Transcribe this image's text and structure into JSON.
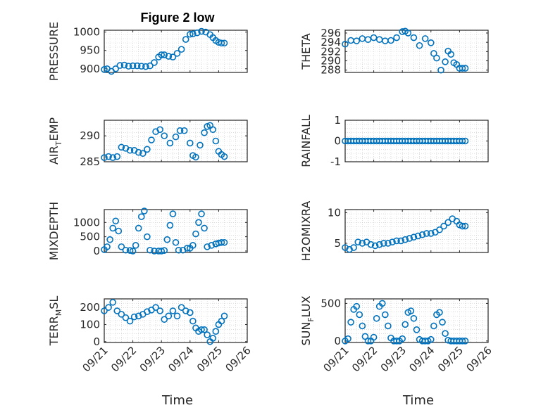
{
  "figure": {
    "title": "Figure 2 low",
    "xlabel": "Time"
  },
  "colors": {
    "marker": "#0072BD",
    "axis": "#262626",
    "grid": "#c8c8c8"
  },
  "x_ticks": [
    "09/21",
    "09/22",
    "09/23",
    "09/24",
    "09/25",
    "09/26"
  ],
  "chart_data": [
    {
      "type": "scatter",
      "ylabel_main": "PRESSURE",
      "ylabel_sub": "",
      "ylim": [
        890,
        1005
      ],
      "yticks": [
        900,
        950,
        1000
      ],
      "xlim": [
        "09/21",
        "09/26"
      ],
      "grid": true,
      "x": [
        0,
        0.1,
        0.25,
        0.4,
        0.55,
        0.7,
        0.85,
        1,
        1.15,
        1.3,
        1.45,
        1.6,
        1.75,
        1.9,
        2,
        2.1,
        2.25,
        2.4,
        2.55,
        2.7,
        2.85,
        3,
        3.1,
        3.25,
        3.4,
        3.55,
        3.7,
        3.8,
        3.9,
        4,
        4.1,
        4.2
      ],
      "y": [
        898,
        900,
        893,
        900,
        909,
        910,
        907,
        908,
        908,
        907,
        906,
        908,
        917,
        932,
        938,
        938,
        934,
        932,
        942,
        953,
        980,
        994,
        995,
        998,
        1002,
        1000,
        993,
        985,
        977,
        972,
        970,
        970
      ]
    },
    {
      "type": "scatter",
      "ylabel_main": "THETA",
      "ylabel_sub": "",
      "ylim": [
        287.5,
        296.6
      ],
      "yticks": [
        288,
        290,
        292,
        294,
        296
      ],
      "xlim": [
        "09/21",
        "09/26"
      ],
      "grid": true,
      "x": [
        0,
        0.2,
        0.4,
        0.6,
        0.8,
        1,
        1.2,
        1.4,
        1.6,
        1.8,
        2,
        2.1,
        2.2,
        2.4,
        2.6,
        2.8,
        3,
        3.1,
        3.2,
        3.35,
        3.5,
        3.6,
        3.7,
        3.8,
        3.9,
        4,
        4.1,
        4.2
      ],
      "y": [
        293.6,
        294.4,
        294.3,
        294.8,
        294.6,
        295.0,
        294.6,
        294.3,
        294.4,
        295.0,
        296.3,
        296.4,
        296.0,
        295.0,
        293.3,
        294.8,
        293.9,
        291.6,
        290.6,
        288.0,
        289.8,
        292.1,
        291.4,
        289.6,
        289.2,
        288.4,
        288.4,
        288.4
      ]
    },
    {
      "type": "scatter",
      "ylabel_main": "AIR",
      "ylabel_sub": "T",
      "ylabel_rest": "EMP",
      "ylim": [
        285,
        293
      ],
      "yticks": [
        285,
        290
      ],
      "xlim": [
        "09/21",
        "09/26"
      ],
      "grid": true,
      "x": [
        0,
        0.15,
        0.3,
        0.45,
        0.6,
        0.75,
        0.9,
        1.05,
        1.2,
        1.35,
        1.5,
        1.65,
        1.8,
        1.95,
        2.1,
        2.3,
        2.5,
        2.65,
        2.8,
        3,
        3.1,
        3.2,
        3.35,
        3.5,
        3.6,
        3.7,
        3.8,
        3.9,
        4,
        4.1,
        4.2
      ],
      "y": [
        285.8,
        286.0,
        285.8,
        286.0,
        287.8,
        287.6,
        287.2,
        287.2,
        286.8,
        286.6,
        287.4,
        289.2,
        290.8,
        291.2,
        290.0,
        288.6,
        289.8,
        291.0,
        291.0,
        288.6,
        286.2,
        285.9,
        288.2,
        290.6,
        291.8,
        292.0,
        291.2,
        289.0,
        287.0,
        286.4,
        286.0
      ]
    },
    {
      "type": "scatter",
      "ylabel_main": "RAINFALL",
      "ylabel_sub": "",
      "ylim": [
        -1,
        1
      ],
      "yticks": [
        -1,
        0,
        1
      ],
      "xlim": [
        "09/21",
        "09/26"
      ],
      "grid": true,
      "x": [
        0,
        0.1,
        0.2,
        0.3,
        0.4,
        0.5,
        0.6,
        0.7,
        0.8,
        0.9,
        1,
        1.1,
        1.2,
        1.3,
        1.4,
        1.5,
        1.6,
        1.7,
        1.8,
        1.9,
        2,
        2.1,
        2.2,
        2.3,
        2.4,
        2.5,
        2.6,
        2.7,
        2.8,
        2.9,
        3,
        3.1,
        3.2,
        3.3,
        3.4,
        3.5,
        3.6,
        3.7,
        3.8,
        3.9,
        4,
        4.1,
        4.2
      ],
      "y": [
        0,
        0,
        0,
        0,
        0,
        0,
        0,
        0,
        0,
        0,
        0,
        0,
        0,
        0,
        0,
        0,
        0,
        0,
        0,
        0,
        0,
        0,
        0,
        0,
        0,
        0,
        0,
        0,
        0,
        0,
        0,
        0,
        0,
        0,
        0,
        0,
        0,
        0,
        0,
        0,
        0,
        0,
        0
      ]
    },
    {
      "type": "scatter",
      "ylabel_main": "MIXDEPTH",
      "ylabel_sub": "",
      "ylim": [
        -50,
        1450
      ],
      "yticks": [
        0,
        500,
        1000
      ],
      "xlim": [
        "09/21",
        "09/26"
      ],
      "grid": true,
      "x": [
        0,
        0.1,
        0.2,
        0.3,
        0.4,
        0.5,
        0.6,
        0.75,
        0.9,
        1,
        1.1,
        1.2,
        1.3,
        1.4,
        1.5,
        1.6,
        1.75,
        1.9,
        2,
        2.1,
        2.2,
        2.3,
        2.4,
        2.5,
        2.6,
        2.75,
        2.9,
        3,
        3.1,
        3.2,
        3.3,
        3.4,
        3.5,
        3.6,
        3.75,
        3.9,
        4,
        4.1,
        4.2
      ],
      "y": [
        50,
        150,
        400,
        800,
        1050,
        700,
        150,
        30,
        20,
        0,
        200,
        800,
        1200,
        1400,
        500,
        30,
        0,
        0,
        0,
        20,
        400,
        900,
        1300,
        300,
        30,
        30,
        100,
        100,
        200,
        600,
        1000,
        1300,
        800,
        150,
        200,
        250,
        280,
        300,
        300
      ]
    },
    {
      "type": "scatter",
      "ylabel_main": "H2OMIXRA",
      "ylabel_sub": "",
      "ylim": [
        3.5,
        10.5
      ],
      "yticks": [
        5,
        10
      ],
      "xlim": [
        "09/21",
        "09/26"
      ],
      "grid": true,
      "x": [
        0,
        0.15,
        0.3,
        0.45,
        0.6,
        0.75,
        0.9,
        1.05,
        1.2,
        1.35,
        1.5,
        1.65,
        1.8,
        1.95,
        2.1,
        2.25,
        2.4,
        2.55,
        2.7,
        2.85,
        3,
        3.15,
        3.3,
        3.45,
        3.6,
        3.75,
        3.9,
        4,
        4.1,
        4.2
      ],
      "y": [
        4.3,
        4.0,
        4.3,
        5.2,
        5.0,
        5.2,
        4.8,
        4.6,
        4.8,
        5.0,
        5.0,
        5.2,
        5.4,
        5.4,
        5.6,
        5.8,
        6.0,
        6.2,
        6.4,
        6.6,
        6.6,
        6.8,
        7.2,
        7.8,
        8.4,
        9.0,
        8.6,
        8.0,
        7.8,
        7.8
      ]
    },
    {
      "type": "scatter",
      "ylabel_main": "TERR",
      "ylabel_sub": "M",
      "ylabel_rest": "SL",
      "ylim": [
        -5,
        250
      ],
      "yticks": [
        0,
        100,
        200
      ],
      "xlim": [
        "09/21",
        "09/26"
      ],
      "grid": true,
      "x": [
        0,
        0.15,
        0.3,
        0.45,
        0.6,
        0.75,
        0.9,
        1.05,
        1.2,
        1.35,
        1.5,
        1.65,
        1.8,
        1.95,
        2.1,
        2.25,
        2.4,
        2.55,
        2.7,
        2.85,
        3,
        3.1,
        3.2,
        3.3,
        3.4,
        3.5,
        3.6,
        3.7,
        3.8,
        3.9,
        4,
        4.1,
        4.2
      ],
      "y": [
        180,
        200,
        230,
        180,
        160,
        140,
        120,
        145,
        150,
        160,
        175,
        185,
        200,
        180,
        130,
        150,
        180,
        150,
        200,
        180,
        170,
        120,
        80,
        60,
        70,
        70,
        40,
        0,
        20,
        60,
        100,
        120,
        150
      ]
    },
    {
      "type": "scatter",
      "ylabel_main": "SUN",
      "ylabel_sub": "F",
      "ylabel_rest": "LUX",
      "ylim": [
        -20,
        560
      ],
      "yticks": [
        0,
        500
      ],
      "xlim": [
        "09/21",
        "09/26"
      ],
      "grid": true,
      "x": [
        0,
        0.1,
        0.2,
        0.3,
        0.4,
        0.5,
        0.6,
        0.7,
        0.8,
        0.9,
        1,
        1.1,
        1.2,
        1.3,
        1.4,
        1.5,
        1.6,
        1.7,
        1.8,
        1.9,
        2,
        2.1,
        2.2,
        2.3,
        2.4,
        2.5,
        2.6,
        2.7,
        2.8,
        2.9,
        3,
        3.1,
        3.2,
        3.3,
        3.4,
        3.5,
        3.6,
        3.7,
        3.8,
        3.9,
        4,
        4.1,
        4.2
      ],
      "y": [
        0,
        30,
        250,
        420,
        460,
        350,
        200,
        60,
        0,
        0,
        50,
        300,
        460,
        500,
        350,
        200,
        40,
        0,
        0,
        0,
        30,
        220,
        380,
        400,
        300,
        150,
        20,
        0,
        0,
        0,
        20,
        200,
        350,
        380,
        250,
        100,
        10,
        0,
        0,
        0,
        0,
        0,
        0
      ]
    }
  ]
}
